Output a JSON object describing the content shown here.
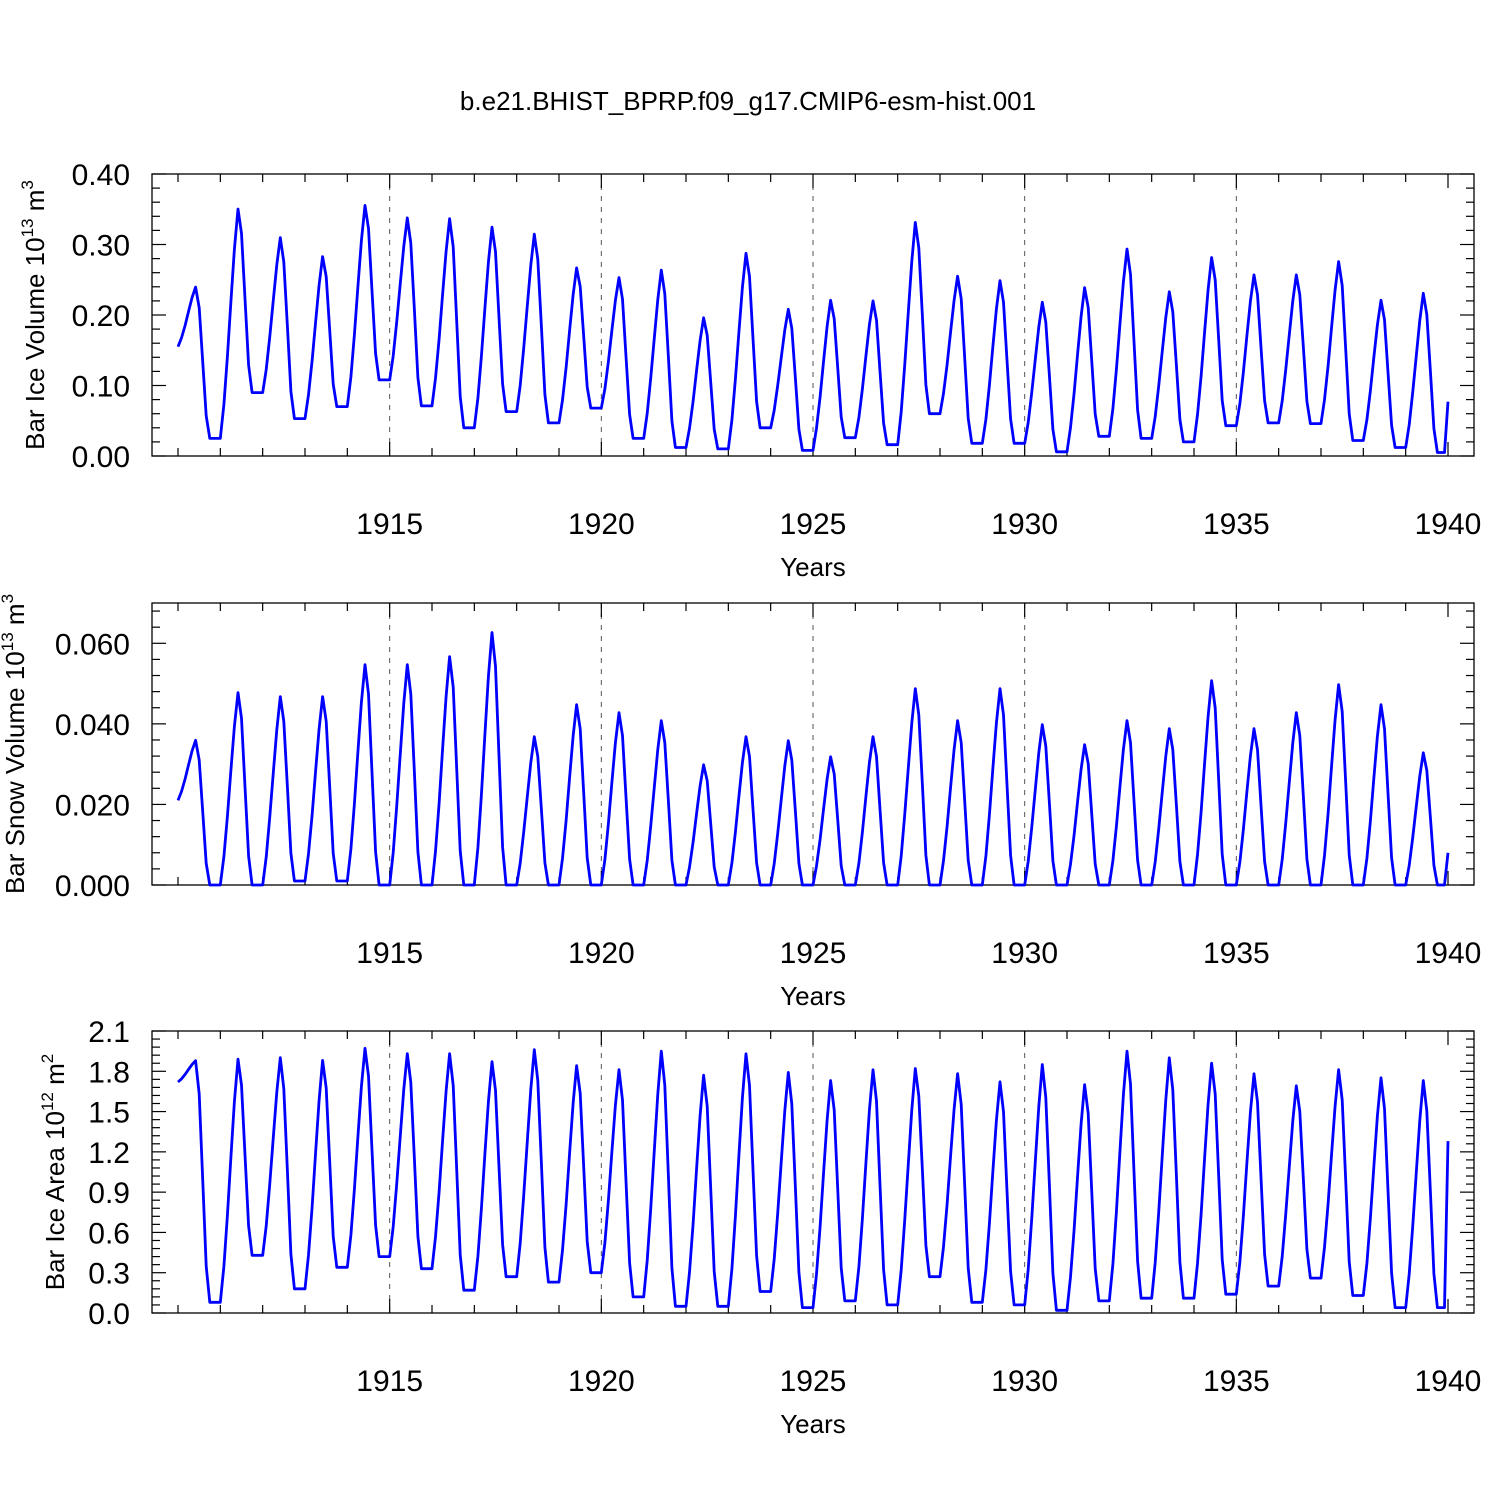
{
  "title": "b.e21.BHIST_BPRP.f09_g17.CMIP6-esm-hist.001",
  "colors": {
    "line": "#0000ff",
    "axis": "#000000",
    "grid": "#555555"
  },
  "chart_data": [
    {
      "type": "line",
      "id": "ice-volume",
      "ylabel": {
        "text": "Bar Ice Volume 10",
        "sup": "13",
        "text2": " m",
        "sup2": "3"
      },
      "xlabel": "Years",
      "xlim": [
        1910.0,
        1940.0
      ],
      "ylim": [
        0.0,
        0.4
      ],
      "yticks": [
        "0.00",
        "0.10",
        "0.20",
        "0.30",
        "0.40"
      ],
      "ytick_values": [
        0.0,
        0.1,
        0.2,
        0.3,
        0.4
      ],
      "xticks": [
        "1915",
        "1920",
        "1925",
        "1930",
        "1935",
        "1940"
      ],
      "xtick_values": [
        1915,
        1920,
        1925,
        1930,
        1935,
        1940
      ],
      "grid": "dashed vertical at labeled years",
      "series_peaks": [
        0.24,
        0.352,
        0.311,
        0.284,
        0.357,
        0.339,
        0.338,
        0.326,
        0.316,
        0.268,
        0.254,
        0.265,
        0.197,
        0.289,
        0.209,
        0.222,
        0.221,
        0.333,
        0.256,
        0.25,
        0.219,
        0.24,
        0.295,
        0.234,
        0.283,
        0.258,
        0.258,
        0.277,
        0.222,
        0.232
      ],
      "series_troughs": [
        0.155,
        0.025,
        0.09,
        0.053,
        0.07,
        0.108,
        0.071,
        0.04,
        0.063,
        0.047,
        0.068,
        0.025,
        0.012,
        0.01,
        0.04,
        0.008,
        0.026,
        0.016,
        0.06,
        0.018,
        0.018,
        0.006,
        0.028,
        0.025,
        0.02,
        0.043,
        0.047,
        0.046,
        0.022,
        0.012,
        0.005
      ],
      "x_start": 1910.0,
      "x_end": 1940.0,
      "y_end": 0.077
    },
    {
      "type": "line",
      "id": "snow-volume",
      "ylabel": {
        "text": "Bar Snow Volume 10",
        "sup": "13",
        "text2": " m",
        "sup2": "3"
      },
      "xlabel": "Years",
      "xlim": [
        1910.0,
        1940.0
      ],
      "ylim": [
        0.0,
        0.07
      ],
      "yticks": [
        "0.000",
        "0.020",
        "0.040",
        "0.060"
      ],
      "ytick_values": [
        0.0,
        0.02,
        0.04,
        0.06
      ],
      "xticks": [
        "1915",
        "1920",
        "1925",
        "1930",
        "1935",
        "1940"
      ],
      "xtick_values": [
        1915,
        1920,
        1925,
        1930,
        1935,
        1940
      ],
      "grid": "dashed vertical at labeled years",
      "series_peaks": [
        0.036,
        0.048,
        0.047,
        0.047,
        0.055,
        0.055,
        0.057,
        0.063,
        0.037,
        0.045,
        0.043,
        0.041,
        0.03,
        0.037,
        0.036,
        0.032,
        0.037,
        0.049,
        0.041,
        0.049,
        0.04,
        0.035,
        0.041,
        0.039,
        0.051,
        0.039,
        0.043,
        0.05,
        0.045,
        0.033
      ],
      "series_troughs": [
        0.021,
        0.0,
        0.0,
        0.001,
        0.001,
        0.0,
        0.0,
        0.0,
        0.0,
        0.0,
        0.0,
        0.0,
        0.0,
        0.0,
        0.0,
        0.0,
        0.0,
        0.0,
        0.0,
        0.0,
        0.0,
        0.0,
        0.0,
        0.0,
        0.0,
        0.0,
        0.0,
        0.0,
        0.0,
        0.0,
        0.0
      ],
      "x_start": 1910.0,
      "x_end": 1940.0,
      "y_end": 0.008
    },
    {
      "type": "line",
      "id": "ice-area",
      "ylabel": {
        "text": "Bar Ice Area 10",
        "sup": "12",
        "text2": " m",
        "sup2": "2"
      },
      "xlabel": "Years",
      "xlim": [
        1910.0,
        1940.0
      ],
      "ylim": [
        0.0,
        2.1
      ],
      "yticks": [
        "0.0",
        "0.3",
        "0.6",
        "0.9",
        "1.2",
        "1.5",
        "1.8",
        "2.1"
      ],
      "ytick_values": [
        0.0,
        0.3,
        0.6,
        0.9,
        1.2,
        1.5,
        1.8,
        2.1
      ],
      "xticks": [
        "1915",
        "1920",
        "1925",
        "1930",
        "1935",
        "1940"
      ],
      "xtick_values": [
        1915,
        1920,
        1925,
        1930,
        1935,
        1940
      ],
      "grid": "dashed vertical at labeled years",
      "series_peaks": [
        1.88,
        1.9,
        1.91,
        1.89,
        1.98,
        1.94,
        1.94,
        1.88,
        1.97,
        1.85,
        1.82,
        1.96,
        1.78,
        1.94,
        1.8,
        1.74,
        1.82,
        1.83,
        1.79,
        1.73,
        1.86,
        1.71,
        1.96,
        1.91,
        1.87,
        1.79,
        1.7,
        1.82,
        1.76,
        1.74
      ],
      "series_troughs": [
        1.72,
        0.08,
        0.43,
        0.18,
        0.34,
        0.42,
        0.33,
        0.17,
        0.27,
        0.23,
        0.3,
        0.12,
        0.05,
        0.05,
        0.16,
        0.04,
        0.09,
        0.06,
        0.27,
        0.08,
        0.06,
        0.02,
        0.09,
        0.11,
        0.11,
        0.14,
        0.2,
        0.26,
        0.13,
        0.04,
        0.04
      ],
      "x_start": 1910.0,
      "x_end": 1940.0,
      "y_end": 1.28
    }
  ]
}
